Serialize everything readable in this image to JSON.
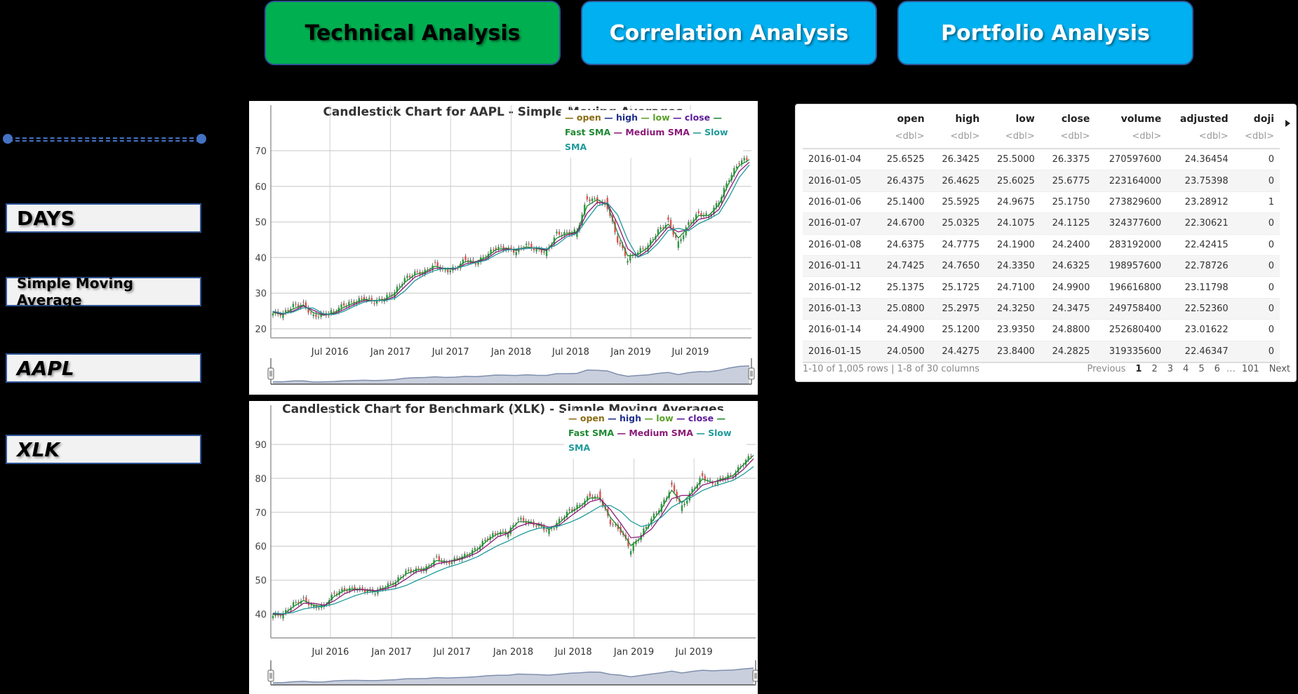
{
  "nav": {
    "buttons": [
      {
        "label": "Technical Analysis",
        "active": true,
        "color": "#00b050"
      },
      {
        "label": "Correlation Analysis",
        "active": false,
        "color": "#00b0f0"
      },
      {
        "label": "Portfolio Analysis",
        "active": false,
        "color": "#00b0f0"
      }
    ]
  },
  "sidebar": {
    "slider": {
      "accent": "#4472c4"
    },
    "boxes": [
      {
        "label": "DAYS"
      },
      {
        "label": "Simple Moving Average"
      },
      {
        "label": "AAPL"
      },
      {
        "label": "XLK"
      }
    ]
  },
  "table": {
    "columns": [
      "",
      "open",
      "high",
      "low",
      "close",
      "volume",
      "adjusted",
      "doji"
    ],
    "types": [
      "",
      "<dbl>",
      "<dbl>",
      "<dbl>",
      "<dbl>",
      "<dbl>",
      "<dbl>",
      "<dbl>"
    ],
    "rows": [
      [
        "2016-01-04",
        "25.6525",
        "26.3425",
        "25.5000",
        "26.3375",
        "270597600",
        "24.36454",
        "0"
      ],
      [
        "2016-01-05",
        "26.4375",
        "26.4625",
        "25.6025",
        "25.6775",
        "223164000",
        "23.75398",
        "0"
      ],
      [
        "2016-01-06",
        "25.1400",
        "25.5925",
        "24.9675",
        "25.1750",
        "273829600",
        "23.28912",
        "1"
      ],
      [
        "2016-01-07",
        "24.6700",
        "25.0325",
        "24.1075",
        "24.1125",
        "324377600",
        "22.30621",
        "0"
      ],
      [
        "2016-01-08",
        "24.6375",
        "24.7775",
        "24.1900",
        "24.2400",
        "283192000",
        "22.42415",
        "0"
      ],
      [
        "2016-01-11",
        "24.7425",
        "24.7650",
        "24.3350",
        "24.6325",
        "198957600",
        "22.78726",
        "0"
      ],
      [
        "2016-01-12",
        "25.1375",
        "25.1725",
        "24.7100",
        "24.9900",
        "196616800",
        "23.11798",
        "0"
      ],
      [
        "2016-01-13",
        "25.0800",
        "25.2975",
        "24.3250",
        "24.3475",
        "249758400",
        "22.52360",
        "0"
      ],
      [
        "2016-01-14",
        "24.4900",
        "25.1200",
        "23.9350",
        "24.8800",
        "252680400",
        "23.01622",
        "0"
      ],
      [
        "2016-01-15",
        "24.0500",
        "24.4275",
        "23.8400",
        "24.2825",
        "319335600",
        "22.46347",
        "0"
      ]
    ],
    "summary": "1-10 of 1,005 rows | 1-8 of 30 columns",
    "pager": {
      "previous": "Previous",
      "pages": [
        "1",
        "2",
        "3",
        "4",
        "5",
        "6"
      ],
      "ellipsis": "…",
      "last": "101",
      "next": "Next",
      "current": "1"
    }
  },
  "legend_colors": {
    "open": "#8b6d14",
    "high": "#1f2f8c",
    "low": "#5aa02c",
    "close": "#5b1a9a",
    "fast_sma": "#1e8a32",
    "medium_sma": "#8b1a78",
    "slow_sma": "#1f9a9a"
  },
  "chart_data": [
    {
      "type": "line",
      "title": "Candlestick Chart for AAPL - Simple Moving Averages",
      "xlabel": "",
      "ylabel": "",
      "x_ticks": [
        "Jul 2016",
        "Jan 2017",
        "Jul 2017",
        "Jan 2018",
        "Jul 2018",
        "Jan 2019",
        "Jul 2019"
      ],
      "y_ticks": [
        20,
        30,
        40,
        50,
        60,
        70
      ],
      "ylim": [
        17,
        78
      ],
      "grid": true,
      "legend": [
        "open",
        "high",
        "low",
        "close",
        "Fast SMA",
        "Medium SMA",
        "Slow SMA"
      ],
      "legend_position": "top-right",
      "x": [
        "2016-01",
        "2016-02",
        "2016-03",
        "2016-04",
        "2016-05",
        "2016-06",
        "2016-07",
        "2016-08",
        "2016-09",
        "2016-10",
        "2016-11",
        "2016-12",
        "2017-01",
        "2017-02",
        "2017-03",
        "2017-04",
        "2017-05",
        "2017-06",
        "2017-07",
        "2017-08",
        "2017-09",
        "2017-10",
        "2017-11",
        "2017-12",
        "2018-01",
        "2018-02",
        "2018-03",
        "2018-04",
        "2018-05",
        "2018-06",
        "2018-07",
        "2018-08",
        "2018-09",
        "2018-10",
        "2018-11",
        "2018-12",
        "2019-01",
        "2019-02",
        "2019-03",
        "2019-04",
        "2019-05",
        "2019-06",
        "2019-07",
        "2019-08",
        "2019-09",
        "2019-10",
        "2019-11",
        "2019-12"
      ],
      "series": [
        {
          "name": "close",
          "values": [
            24.3,
            24.2,
            26.5,
            26.8,
            23.5,
            24.1,
            24.8,
            26.8,
            27.5,
            28.6,
            27.6,
            28.5,
            30.3,
            34.0,
            35.6,
            36.0,
            38.1,
            36.2,
            37.0,
            39.5,
            38.5,
            40.5,
            42.8,
            42.5,
            41.7,
            43.7,
            42.1,
            41.8,
            46.7,
            46.8,
            47.5,
            56.5,
            56.0,
            54.2,
            44.8,
            39.5,
            41.6,
            43.3,
            47.5,
            50.0,
            44.0,
            49.5,
            52.3,
            51.7,
            55.8,
            62.2,
            66.8,
            68.0
          ]
        },
        {
          "name": "Fast SMA",
          "values": [
            24.6,
            24.0,
            25.6,
            26.7,
            24.5,
            23.8,
            24.5,
            26.0,
            27.2,
            28.3,
            27.8,
            28.2,
            29.7,
            33.0,
            35.2,
            35.9,
            37.6,
            36.8,
            36.8,
            38.9,
            38.8,
            40.0,
            42.2,
            42.6,
            42.0,
            43.0,
            42.6,
            41.9,
            45.5,
            46.7,
            47.2,
            54.5,
            56.3,
            54.8,
            47.0,
            40.5,
            40.8,
            42.8,
            46.5,
            49.4,
            45.5,
            48.5,
            51.8,
            51.8,
            54.8,
            61.0,
            65.8,
            67.5
          ]
        },
        {
          "name": "Medium SMA",
          "values": [
            24.8,
            24.1,
            25.0,
            26.4,
            25.2,
            23.9,
            24.2,
            25.4,
            26.8,
            27.9,
            27.9,
            28.0,
            29.0,
            31.8,
            34.5,
            35.6,
            37.0,
            37.0,
            36.8,
            38.2,
            38.8,
            39.5,
            41.5,
            42.4,
            42.2,
            42.6,
            42.7,
            42.1,
            44.4,
            46.3,
            47.0,
            52.5,
            55.5,
            55.2,
            49.5,
            42.5,
            40.2,
            42.0,
            45.2,
            48.6,
            47.2,
            47.9,
            50.7,
            51.3,
            53.5,
            59.0,
            64.2,
            66.8
          ]
        },
        {
          "name": "Slow SMA",
          "values": [
            24.9,
            24.3,
            24.7,
            25.9,
            25.8,
            24.2,
            24.0,
            24.9,
            26.3,
            27.5,
            28.0,
            27.9,
            28.5,
            30.6,
            33.5,
            35.2,
            36.4,
            37.0,
            37.0,
            37.7,
            38.6,
            39.2,
            40.8,
            42.1,
            42.4,
            42.5,
            42.8,
            42.4,
            43.6,
            45.8,
            46.8,
            50.8,
            54.5,
            55.4,
            52.0,
            45.0,
            40.1,
            41.3,
            44.0,
            47.6,
            48.2,
            47.5,
            49.5,
            50.8,
            52.4,
            57.0,
            62.5,
            66.0
          ]
        }
      ],
      "navigator": true
    },
    {
      "type": "line",
      "title": "Candlestick Chart for Benchmark (XLK) - Simple Moving Averages",
      "xlabel": "",
      "ylabel": "",
      "x_ticks": [
        "Jul 2016",
        "Jan 2017",
        "Jul 2017",
        "Jan 2018",
        "Jul 2018",
        "Jan 2019",
        "Jul 2019"
      ],
      "y_ticks": [
        40,
        50,
        60,
        70,
        80,
        90
      ],
      "ylim": [
        33,
        97
      ],
      "grid": true,
      "legend": [
        "open",
        "high",
        "low",
        "close",
        "Fast SMA",
        "Medium SMA",
        "Slow SMA"
      ],
      "legend_position": "top-right",
      "x": [
        "2016-01",
        "2016-02",
        "2016-03",
        "2016-04",
        "2016-05",
        "2016-06",
        "2016-07",
        "2016-08",
        "2016-09",
        "2016-10",
        "2016-11",
        "2016-12",
        "2017-01",
        "2017-02",
        "2017-03",
        "2017-04",
        "2017-05",
        "2017-06",
        "2017-07",
        "2017-08",
        "2017-09",
        "2017-10",
        "2017-11",
        "2017-12",
        "2018-01",
        "2018-02",
        "2018-03",
        "2018-04",
        "2018-05",
        "2018-06",
        "2018-07",
        "2018-08",
        "2018-09",
        "2018-10",
        "2018-11",
        "2018-12",
        "2019-01",
        "2019-02",
        "2019-03",
        "2019-04",
        "2019-05",
        "2019-06",
        "2019-07",
        "2019-08",
        "2019-09",
        "2019-10",
        "2019-11",
        "2019-12"
      ],
      "series": [
        {
          "name": "close",
          "values": [
            39.5,
            40.0,
            43.0,
            44.3,
            42.0,
            42.5,
            46.0,
            47.2,
            47.5,
            47.0,
            46.5,
            48.2,
            49.5,
            52.5,
            53.0,
            53.5,
            56.5,
            55.0,
            56.3,
            57.5,
            59.5,
            62.5,
            64.0,
            64.0,
            68.0,
            67.0,
            66.0,
            64.5,
            67.5,
            70.5,
            72.0,
            74.8,
            74.0,
            67.0,
            64.5,
            59.0,
            63.5,
            68.0,
            72.0,
            77.5,
            71.5,
            76.5,
            80.5,
            78.5,
            80.0,
            81.0,
            84.5,
            87.5
          ]
        },
        {
          "name": "Fast SMA",
          "values": [
            39.9,
            39.8,
            42.2,
            44.0,
            42.6,
            42.3,
            45.2,
            47.0,
            47.4,
            47.1,
            46.7,
            47.8,
            49.2,
            51.8,
            53.0,
            53.4,
            55.8,
            55.4,
            56.1,
            57.2,
            59.0,
            61.8,
            63.7,
            64.0,
            67.2,
            67.2,
            66.3,
            65.0,
            66.8,
            69.8,
            71.6,
            74.2,
            74.2,
            68.5,
            65.0,
            60.2,
            62.5,
            67.0,
            71.0,
            76.5,
            72.8,
            75.8,
            79.8,
            78.8,
            79.8,
            80.8,
            84.0,
            86.8
          ]
        },
        {
          "name": "Medium SMA",
          "values": [
            40.1,
            39.9,
            41.0,
            43.2,
            43.2,
            42.6,
            43.9,
            46.0,
            47.2,
            47.2,
            46.9,
            47.4,
            48.4,
            50.3,
            52.4,
            53.1,
            54.8,
            55.4,
            55.9,
            56.8,
            58.1,
            60.4,
            62.8,
            63.8,
            65.8,
            66.8,
            66.6,
            65.6,
            66.2,
            68.6,
            70.8,
            73.1,
            73.9,
            70.8,
            66.8,
            62.5,
            62.8,
            65.0,
            69.1,
            74.0,
            75.0,
            75.0,
            78.0,
            78.9,
            79.5,
            80.2,
            82.6,
            85.8
          ]
        },
        {
          "name": "Slow SMA",
          "values": [
            40.3,
            40.1,
            40.5,
            41.5,
            42.0,
            42.3,
            43.0,
            44.2,
            45.4,
            46.3,
            46.6,
            47.0,
            47.5,
            48.4,
            49.8,
            51.1,
            52.5,
            53.7,
            54.6,
            55.7,
            56.9,
            58.6,
            60.2,
            61.5,
            63.1,
            64.4,
            65.3,
            65.5,
            66.0,
            67.0,
            68.3,
            70.0,
            71.8,
            72.0,
            70.3,
            67.4,
            65.8,
            66.5,
            68.6,
            71.5,
            73.2,
            74.6,
            76.4,
            77.6,
            78.5,
            79.4,
            81.2,
            83.5
          ]
        }
      ],
      "navigator": true
    }
  ]
}
